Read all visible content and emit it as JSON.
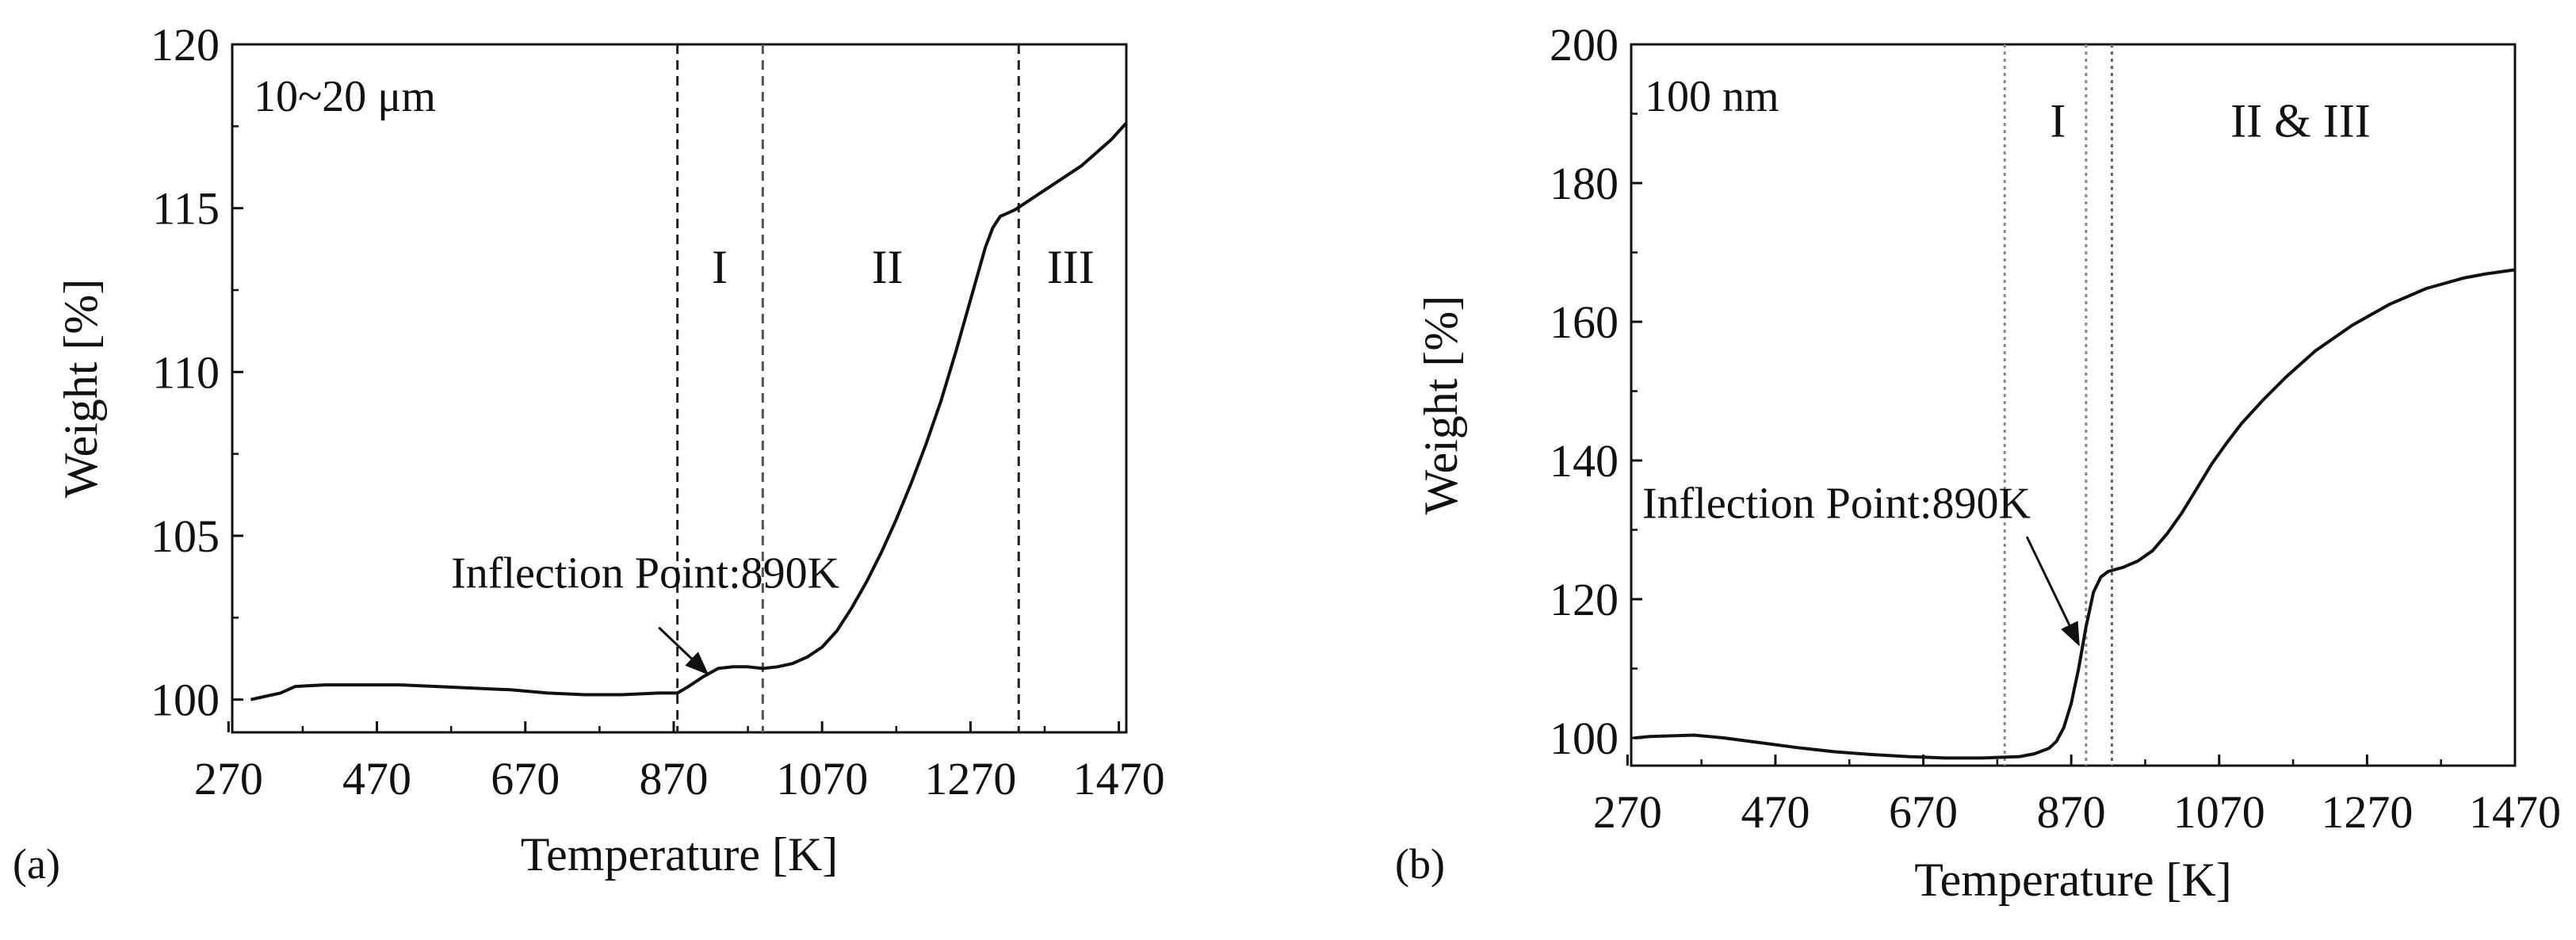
{
  "figure": {
    "background": "#ffffff",
    "line_color": "#111111"
  },
  "chart_data": [
    {
      "type": "line",
      "panel_label": "(a)",
      "corner_label": "10~20 μm",
      "xlabel": "Temperature [K]",
      "ylabel": "Weight [%]",
      "xlim": [
        275,
        1480
      ],
      "ylim": [
        99,
        120
      ],
      "xticks": [
        270,
        470,
        670,
        870,
        1070,
        1270,
        1470
      ],
      "yticks": [
        100,
        105,
        110,
        115,
        120
      ],
      "vlines": [
        {
          "x": 875,
          "style": "dashed",
          "color": "#222222"
        },
        {
          "x": 990,
          "style": "dashed",
          "color": "#555555"
        },
        {
          "x": 1335,
          "style": "dashed",
          "color": "#222222"
        }
      ],
      "regions": [
        {
          "label": "I",
          "x": 932,
          "y": 113.2
        },
        {
          "label": "II",
          "x": 1158,
          "y": 113.2
        },
        {
          "label": "III",
          "x": 1405,
          "y": 113.2
        }
      ],
      "annotation": {
        "text": "Inflection Point:890K",
        "text_x": 570,
        "text_y": 103.9,
        "arrow_from": [
          850,
          102.2
        ],
        "arrow_to": [
          915,
          100.8
        ]
      },
      "series": [
        {
          "name": "10~20 μm",
          "x": [
            300,
            320,
            340,
            360,
            400,
            450,
            500,
            550,
            600,
            650,
            700,
            750,
            800,
            850,
            875,
            890,
            910,
            930,
            950,
            970,
            990,
            1010,
            1030,
            1050,
            1070,
            1090,
            1110,
            1130,
            1150,
            1170,
            1190,
            1210,
            1230,
            1250,
            1270,
            1290,
            1300,
            1310,
            1320,
            1330,
            1340,
            1360,
            1380,
            1400,
            1420,
            1440,
            1460,
            1480
          ],
          "y": [
            100.0,
            100.1,
            100.2,
            100.4,
            100.45,
            100.45,
            100.45,
            100.4,
            100.35,
            100.3,
            100.2,
            100.15,
            100.15,
            100.2,
            100.2,
            100.4,
            100.7,
            100.95,
            101.0,
            101.0,
            100.95,
            101.0,
            101.1,
            101.3,
            101.6,
            102.1,
            102.8,
            103.6,
            104.5,
            105.5,
            106.6,
            107.8,
            109.1,
            110.6,
            112.2,
            113.8,
            114.4,
            114.75,
            114.85,
            114.95,
            115.1,
            115.4,
            115.7,
            116.0,
            116.3,
            116.7,
            117.1,
            117.6
          ]
        }
      ]
    },
    {
      "type": "line",
      "panel_label": "(b)",
      "corner_label": "100 nm",
      "xlabel": "Temperature [K]",
      "ylabel": "Weight [%]",
      "xlim": [
        275,
        1470
      ],
      "ylim": [
        96,
        200
      ],
      "xticks": [
        270,
        470,
        670,
        870,
        1070,
        1270,
        1470
      ],
      "yticks": [
        100,
        120,
        140,
        160,
        180,
        200
      ],
      "vlines": [
        {
          "x": 780,
          "style": "dotted",
          "color": "#888888"
        },
        {
          "x": 890,
          "style": "dotted",
          "color": "#888888"
        },
        {
          "x": 925,
          "style": "dotted",
          "color": "#666666"
        }
      ],
      "regions": [
        {
          "label": "I",
          "x": 852,
          "y": 189
        },
        {
          "label": "II & III",
          "x": 1180,
          "y": 189
        }
      ],
      "annotation": {
        "text": "Inflection Point:890K",
        "text_x": 290,
        "text_y": 134,
        "arrow_from": [
          810,
          129
        ],
        "arrow_to": [
          880,
          113.5
        ]
      },
      "series": [
        {
          "name": "100 nm",
          "x": [
            280,
            300,
            330,
            360,
            400,
            450,
            500,
            550,
            600,
            650,
            700,
            750,
            800,
            820,
            840,
            850,
            860,
            870,
            880,
            890,
            900,
            910,
            920,
            940,
            960,
            980,
            1000,
            1020,
            1040,
            1060,
            1080,
            1100,
            1130,
            1160,
            1200,
            1250,
            1300,
            1350,
            1400,
            1430,
            1470
          ],
          "y": [
            100.0,
            100.2,
            100.3,
            100.4,
            100.0,
            99.3,
            98.6,
            98.0,
            97.6,
            97.3,
            97.1,
            97.1,
            97.3,
            97.7,
            98.5,
            99.5,
            101.5,
            105.0,
            110.0,
            116.0,
            121.0,
            123.2,
            124.0,
            124.6,
            125.5,
            127.0,
            129.5,
            132.5,
            136.0,
            139.5,
            142.5,
            145.3,
            148.8,
            152.0,
            155.8,
            159.5,
            162.5,
            164.8,
            166.3,
            166.9,
            167.5
          ]
        }
      ]
    }
  ]
}
